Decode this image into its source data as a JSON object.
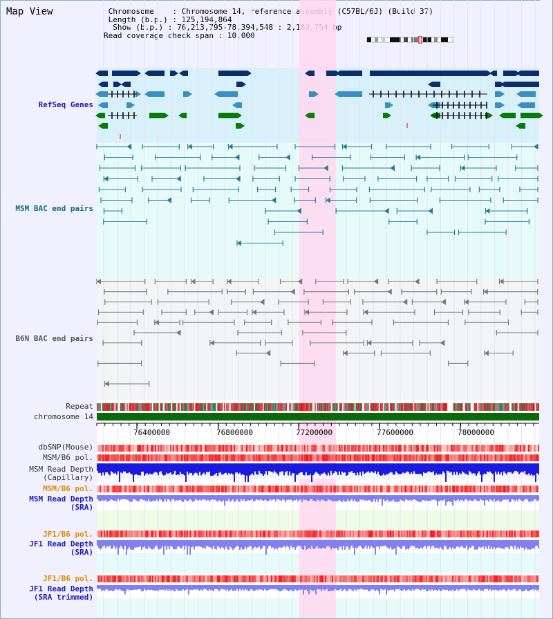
{
  "page": {
    "title": "Map View"
  },
  "info": {
    "chromosome_label": "Chromosome",
    "chromosome_value": "Chromosome 14, reference assembly (C57BL/6J) (Build 37)",
    "length_label": "Length (b.p.)",
    "length_value": "125,194,864",
    "show_label": "Show (b.p.)",
    "show_value": "76,213,795-78,394,548 : 2,180,754 bp",
    "coverage_label": "Read coverage check span",
    "coverage_value": "10,000"
  },
  "tracks": {
    "refseq": "RefSeq Genes",
    "msm_bac": "MSM BAC end pairs",
    "b6n_bac": "B6N BAC end pairs",
    "repeat": "Repeat",
    "chr": "chromosome 14",
    "dbsnp": "dbSNP(Mouse)",
    "msm_pol": "MSM/B6 pol.",
    "msm_depth_cap_1": "MSM Read Depth",
    "msm_depth_cap_2": "(Capillary)",
    "msm_pol2": "MSM/B6 pol.",
    "msm_depth_sra_1": "MSM Read Depth",
    "msm_depth_sra_2": "(SRA)",
    "jf1_pol": "JF1/B6 pol.",
    "jf1_depth_1": "JF1 Read Depth",
    "jf1_depth_2": "(SRA)",
    "jf1_pol2": "JF1/B6 pol.",
    "jf1_trim_1": "JF1 Read Depth",
    "jf1_trim_2": "(SRA trimmed)"
  },
  "axis": {
    "ticks": [
      "76400000",
      "76800000",
      "77200000",
      "77600000",
      "78000000"
    ]
  },
  "colors": {
    "refseq_bg": "#d8f0fa",
    "msm_bg": "#e6fafa",
    "b6n_bg": "#f2f4f6",
    "highlight": "#ffd8f0",
    "gene_dark": "#0b2d6b",
    "gene_mid": "#3a8fc0",
    "gene_green": "#0a7a0a",
    "msm_pair": "#2a7a96",
    "b6n_pair": "#777777",
    "depth_blue": "#1a1ae0",
    "depth_light": "#8080f0"
  }
}
